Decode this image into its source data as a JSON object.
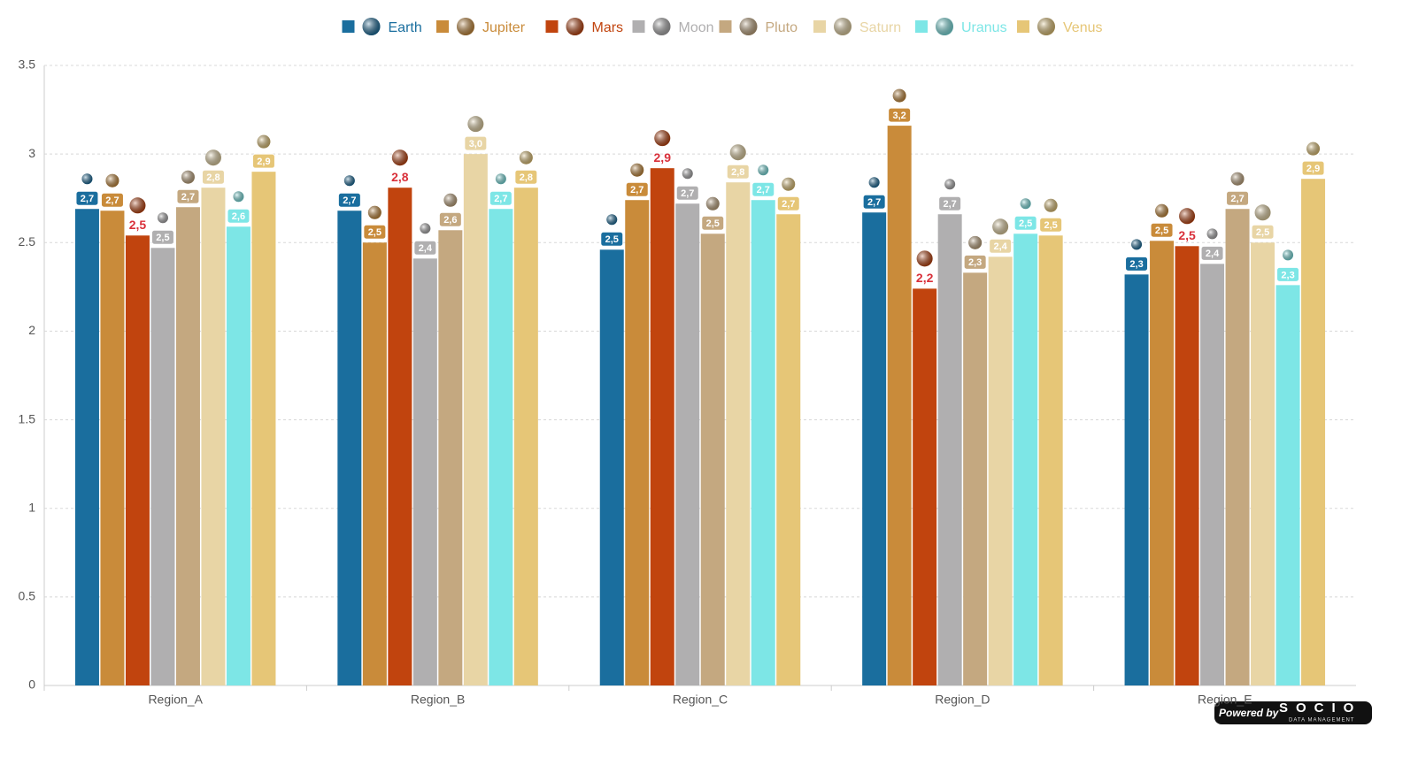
{
  "chart_data": {
    "type": "bar",
    "categories": [
      "Region_A",
      "Region_B",
      "Region_C",
      "Region_D",
      "Region_E"
    ],
    "series": [
      {
        "name": "Earth",
        "color": "#1a6e9e",
        "values": [
          2.69,
          2.68,
          2.46,
          2.67,
          2.32
        ],
        "value_labels": [
          "2,7",
          "2,7",
          "2,5",
          "2,7",
          "2,3"
        ]
      },
      {
        "name": "Jupiter",
        "color": "#c98b3a",
        "values": [
          2.68,
          2.5,
          2.74,
          3.16,
          2.51
        ],
        "value_labels": [
          "2,7",
          "2,5",
          "2,7",
          "3,2",
          "2,5"
        ]
      },
      {
        "name": "Mars",
        "color": "#c1440e",
        "values": [
          2.54,
          2.81,
          2.92,
          2.24,
          2.48
        ],
        "value_labels": [
          "2,5",
          "2,8",
          "2,9",
          "2,2",
          "2,5"
        ]
      },
      {
        "name": "Moon",
        "color": "#b0afb0",
        "values": [
          2.47,
          2.41,
          2.72,
          2.66,
          2.38
        ],
        "value_labels": [
          "2,5",
          "2,4",
          "2,7",
          "2,7",
          "2,4"
        ]
      },
      {
        "name": "Pluto",
        "color": "#c4a880",
        "values": [
          2.7,
          2.57,
          2.55,
          2.33,
          2.69
        ],
        "value_labels": [
          "2,7",
          "2,6",
          "2,5",
          "2,3",
          "2,7"
        ]
      },
      {
        "name": "Saturn",
        "color": "#e8d5a5",
        "values": [
          2.81,
          3.0,
          2.84,
          2.42,
          2.5
        ],
        "value_labels": [
          "2,8",
          "3,0",
          "2,8",
          "2,4",
          "2,5"
        ]
      },
      {
        "name": "Uranus",
        "color": "#7de6e6",
        "values": [
          2.59,
          2.69,
          2.74,
          2.55,
          2.26
        ],
        "value_labels": [
          "2,6",
          "2,7",
          "2,7",
          "2,5",
          "2,3"
        ]
      },
      {
        "name": "Venus",
        "color": "#e6c677",
        "values": [
          2.9,
          2.81,
          2.66,
          2.54,
          2.86
        ],
        "value_labels": [
          "2,9",
          "2,8",
          "2,7",
          "2,5",
          "2,9"
        ]
      }
    ],
    "ylim": [
      0,
      3.5
    ],
    "yticks": [
      0,
      0.5,
      1,
      1.5,
      2,
      2.5,
      3,
      3.5
    ],
    "grid": true,
    "legend": "top"
  },
  "branding": {
    "powered_by": "Powered by",
    "brand": "SOCIO",
    "tagline": "DATA MANAGEMENT"
  }
}
